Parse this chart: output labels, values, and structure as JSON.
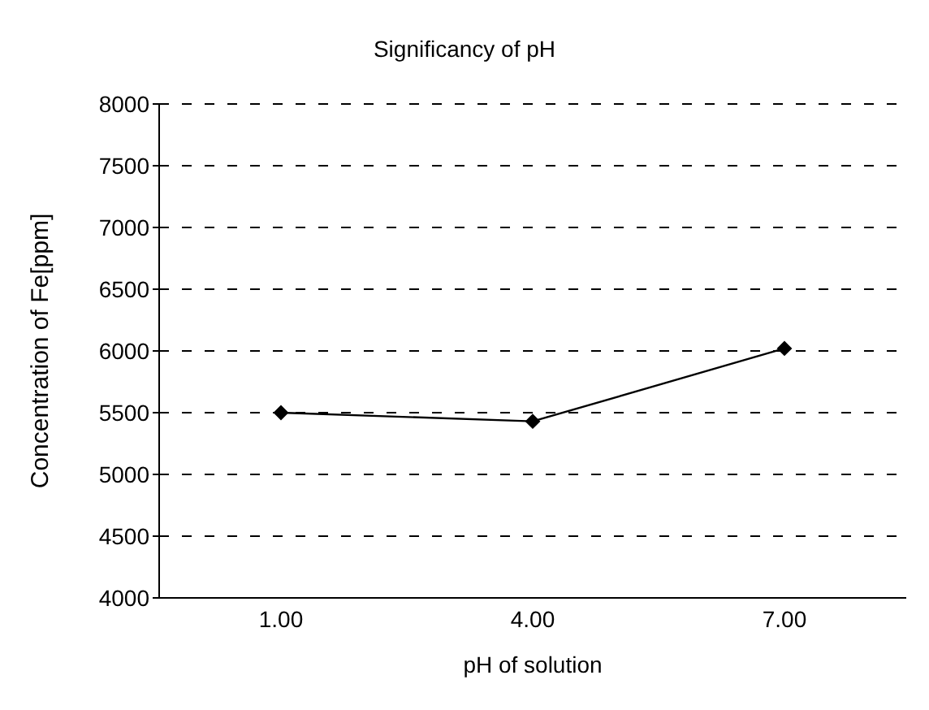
{
  "chart_data": {
    "type": "line",
    "title": "Significancy of pH",
    "xlabel": "pH of solution",
    "ylabel": "Concentration of Fe[ppm]",
    "categories": [
      "1.00",
      "4.00",
      "7.00"
    ],
    "series": [
      {
        "color": "#000000",
        "values": [
          5500,
          5430,
          6020
        ]
      }
    ],
    "ylim": [
      4000,
      8000
    ],
    "yticks": [
      4000,
      4500,
      5000,
      5500,
      6000,
      6500,
      7000,
      7500,
      8000
    ],
    "grid": "y",
    "marker": "diamond",
    "line_style": "solid"
  }
}
